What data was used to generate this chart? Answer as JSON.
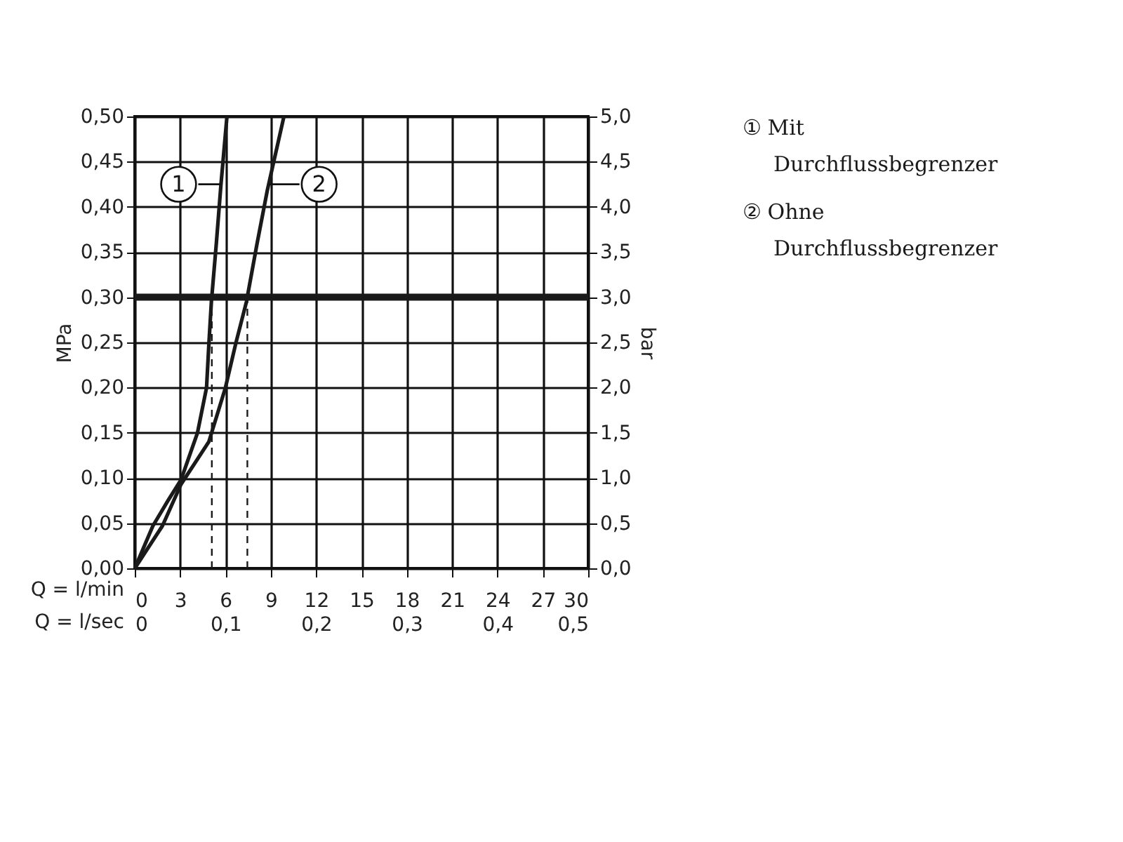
{
  "chart_data": {
    "type": "line",
    "xlabel": "Q = l/min",
    "x2label": "Q = l/sec",
    "ylabel": "MPa",
    "y2label": "bar",
    "xlim": [
      0,
      30
    ],
    "xticks": [
      0,
      3,
      6,
      9,
      12,
      15,
      18,
      21,
      24,
      27,
      30
    ],
    "x2lim": [
      0,
      0.5
    ],
    "x2ticks": [
      0,
      {
        "value": 0.1,
        "label": "0,1"
      },
      {
        "value": 0.2,
        "label": "0,2"
      },
      {
        "value": 0.3,
        "label": "0,3"
      },
      {
        "value": 0.4,
        "label": "0,4"
      },
      {
        "value": 0.5,
        "label": "0,5"
      }
    ],
    "ylim": [
      0,
      0.5
    ],
    "yticks": [
      {
        "value": 0,
        "label": "0,00"
      },
      {
        "value": 0.05,
        "label": "0,05"
      },
      {
        "value": 0.1,
        "label": "0,10"
      },
      {
        "value": 0.15,
        "label": "0,15"
      },
      {
        "value": 0.2,
        "label": "0,20"
      },
      {
        "value": 0.25,
        "label": "0,25"
      },
      {
        "value": 0.3,
        "label": "0,30"
      },
      {
        "value": 0.35,
        "label": "0,35"
      },
      {
        "value": 0.4,
        "label": "0,40"
      },
      {
        "value": 0.45,
        "label": "0,45"
      },
      {
        "value": 0.5,
        "label": "0,50"
      }
    ],
    "y2lim": [
      0,
      5
    ],
    "y2ticks": [
      {
        "value": 0,
        "label": "0,0"
      },
      {
        "value": 0.5,
        "label": "0,5"
      },
      {
        "value": 1,
        "label": "1,0"
      },
      {
        "value": 1.5,
        "label": "1,5"
      },
      {
        "value": 2,
        "label": "2,0"
      },
      {
        "value": 2.5,
        "label": "2,5"
      },
      {
        "value": 3,
        "label": "3,0"
      },
      {
        "value": 3.5,
        "label": "3,5"
      },
      {
        "value": 4,
        "label": "4,0"
      },
      {
        "value": 4.5,
        "label": "4,5"
      },
      {
        "value": 5,
        "label": "5,0"
      }
    ],
    "grid": true,
    "legend": "right",
    "marker": "none",
    "series": [
      {
        "name": "① Mit Durchflussbegrenzer",
        "color": "#1a1a1a",
        "x": [
          0,
          1.2,
          2.2,
          3.06,
          4.15,
          4.75,
          4.91,
          5.07,
          5.4,
          5.7,
          6.1
        ],
        "values": [
          0,
          0.047,
          0.075,
          0.098,
          0.15,
          0.2,
          0.25,
          0.295,
          0.36,
          0.424,
          0.5
        ]
      },
      {
        "name": "② Ohne Durchflussbegrenzer",
        "color": "#1a1a1a",
        "x": [
          0,
          1.83,
          3.06,
          4.9,
          6.0,
          6.7,
          7.39,
          8.1,
          8.78,
          9.87
        ],
        "values": [
          0,
          0.047,
          0.093,
          0.14,
          0.2,
          0.25,
          0.295,
          0.36,
          0.419,
          0.5
        ]
      },
      {
        "type": "line",
        "line_style": "dashed",
        "color": "#1a1a1a",
        "x": [
          5.1,
          5.1
        ],
        "values": [
          0,
          0.3
        ]
      },
      {
        "type": "line",
        "line_style": "dashed",
        "color": "#1a1a1a",
        "x": [
          7.45,
          7.45
        ],
        "values": [
          0,
          0.3
        ]
      }
    ],
    "ref_lines": [
      {
        "axis": "y",
        "value": 0.3,
        "color": "#1a1a1a"
      }
    ],
    "annotations": [
      {
        "text": "1",
        "x": 2.9,
        "y": 0.425
      },
      {
        "text": "2",
        "x": 12.2,
        "y": 0.425
      }
    ]
  }
}
